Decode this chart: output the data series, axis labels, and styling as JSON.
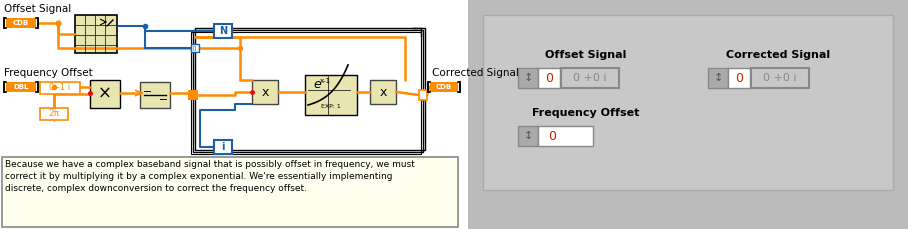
{
  "bg_color": "#ffffff",
  "orange": "#FF8C00",
  "blue": "#1C5FA5",
  "dark_blue": "#0000AA",
  "note_bg": "#FFFFF0",
  "gray_panel": "#BBBBBB",
  "label_offset_signal": "Offset Signal",
  "label_freq_offset": "Frequency Offset",
  "label_corrected": "Corrected Signal",
  "note_line1": "Because we have a complex baseband signal that is possibly offset in frequency, we must",
  "note_line2": "correct it by multiplying it by a complex exponential. We're essentially implementing",
  "note_line3": "discrete, complex downconversion to correct the frequency offset.",
  "right_label_os": "Offset Signal",
  "right_label_cs": "Corrected Signal",
  "right_label_fo": "Frequency Offset"
}
